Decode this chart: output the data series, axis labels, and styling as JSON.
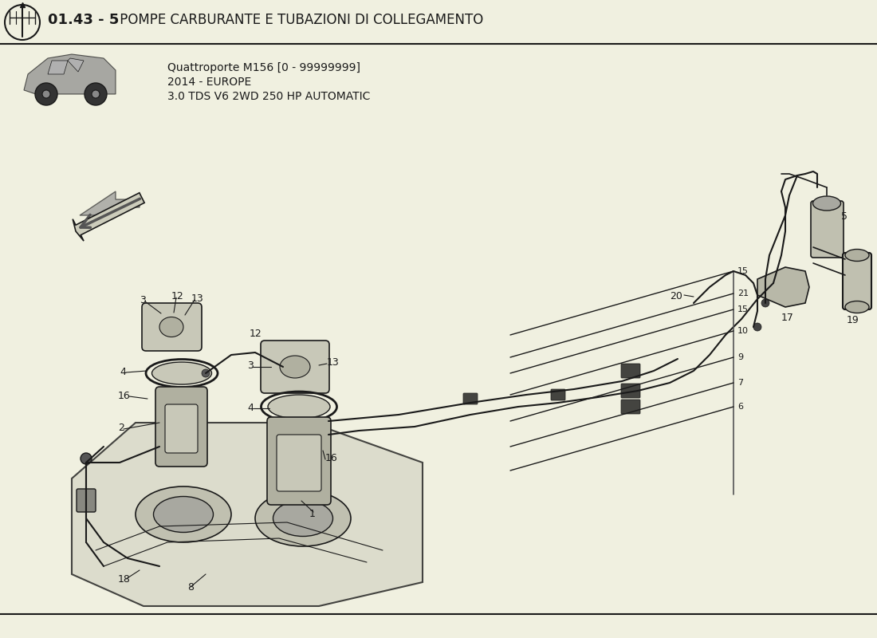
{
  "title_bold": "01.43 - 5",
  "title_rest": " POMPE CARBURANTE E TUBAZIONI DI COLLEGAMENTO",
  "subtitle_line1": "Quattroporte M156 [0 - 99999999]",
  "subtitle_line2": "2014 - EUROPE",
  "subtitle_line3": "3.0 TDS V6 2WD 250 HP AUTOMATIC",
  "bg_color": "#f0f0e0",
  "line_color": "#1a1a1a",
  "text_color": "#1a1a1a",
  "fig_width": 11.0,
  "fig_height": 8.0,
  "dpi": 100
}
